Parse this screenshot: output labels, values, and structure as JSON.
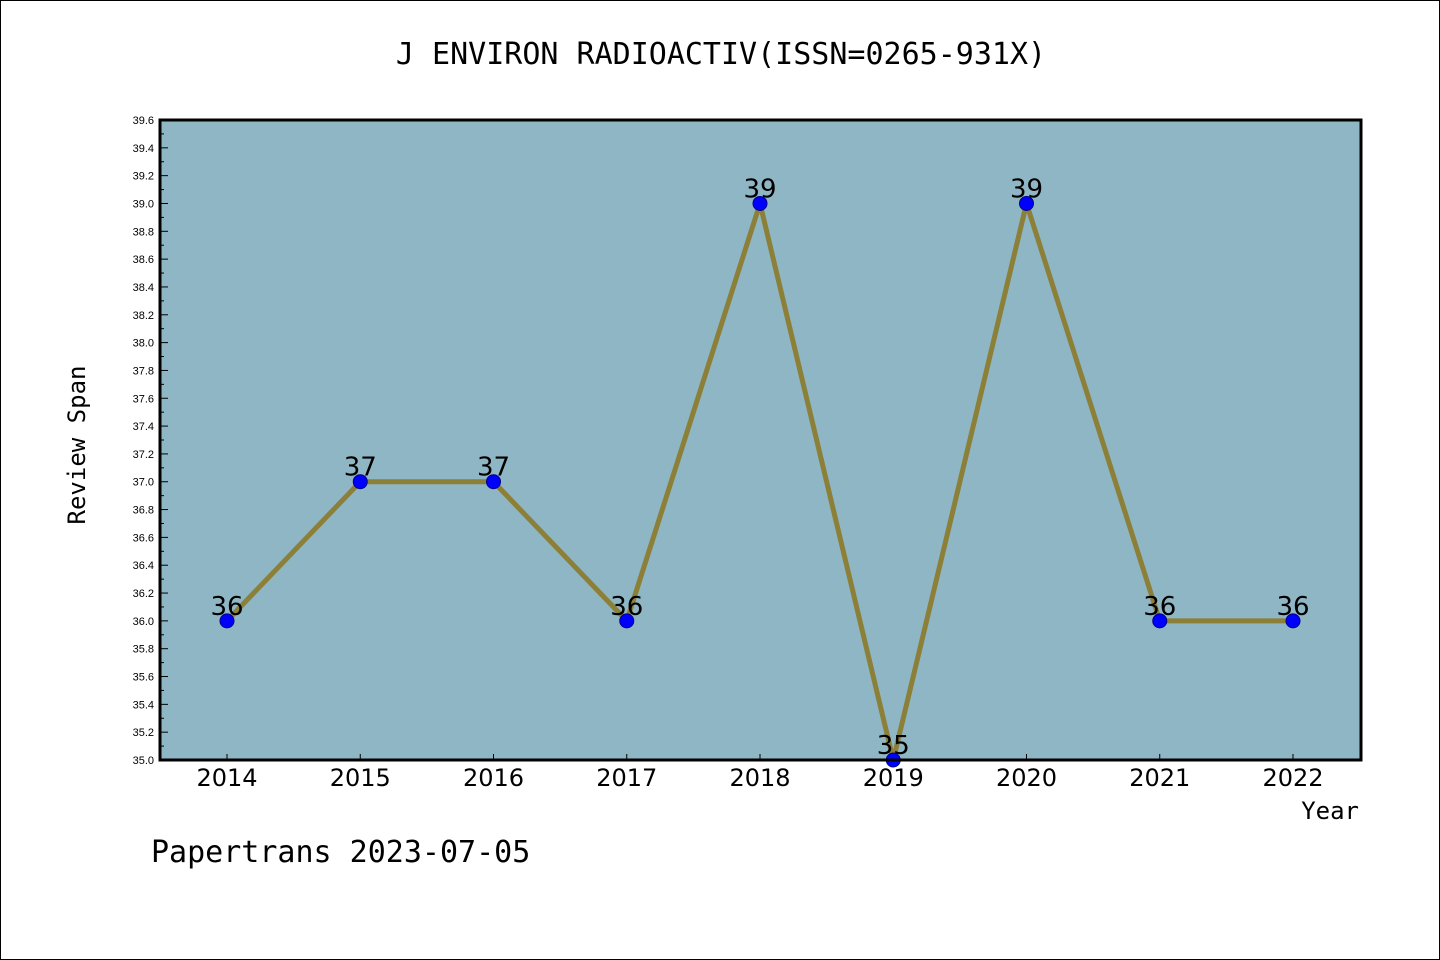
{
  "chart_data": {
    "type": "line",
    "title": "J ENVIRON RADIOACTIV(ISSN=0265-931X)",
    "xlabel": "Year",
    "ylabel": "Review Span",
    "categories": [
      "2014",
      "2015",
      "2016",
      "2017",
      "2018",
      "2019",
      "2020",
      "2021",
      "2022"
    ],
    "values": [
      36,
      37,
      37,
      36,
      39,
      35,
      39,
      36,
      36
    ],
    "data_labels": [
      "36",
      "37",
      "37",
      "36",
      "39",
      "35",
      "39",
      "36",
      "36"
    ],
    "ylim": [
      35.0,
      39.6
    ],
    "y_ticks": [
      "35.0",
      "35.2",
      "35.4",
      "35.6",
      "35.8",
      "36.0",
      "36.2",
      "36.4",
      "36.6",
      "36.8",
      "37.0",
      "37.2",
      "37.4",
      "37.6",
      "37.8",
      "38.0",
      "38.2",
      "38.4",
      "38.6",
      "38.8",
      "39.0",
      "39.2",
      "39.4",
      "39.6"
    ],
    "grid": false,
    "legend": "none",
    "colors": {
      "plot_background": "#8fb6c4",
      "line": "#8c7f38",
      "marker": "#0000ff"
    }
  },
  "footer": "Papertrans 2023-07-05"
}
